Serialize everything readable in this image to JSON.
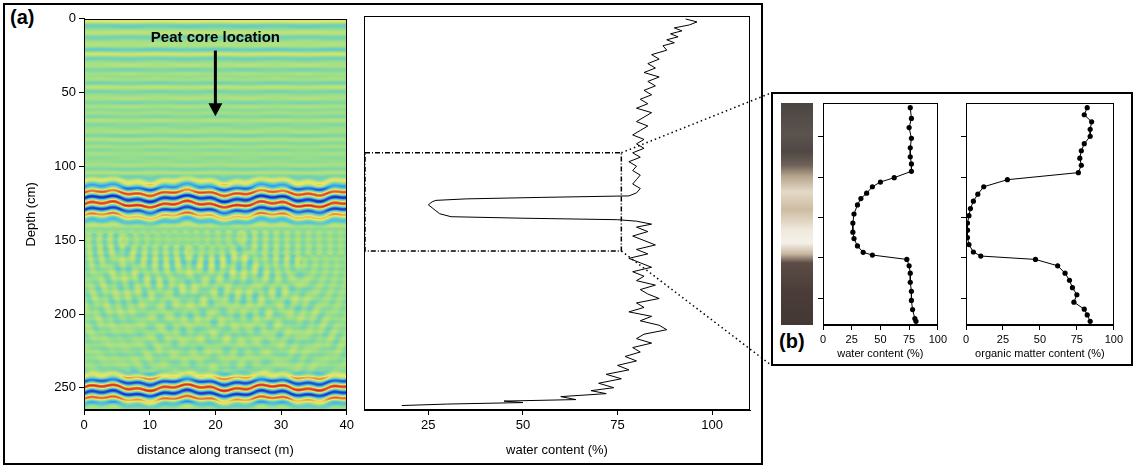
{
  "panel_labels": [
    "(a)",
    "(b)"
  ],
  "chart_data": [
    {
      "type": "radargram",
      "x_label": "distance along transect (m)",
      "y_label": "Depth (cm)",
      "xlim": [
        0,
        40
      ],
      "xticks": [
        0,
        10,
        20,
        30,
        40
      ],
      "ylim": [
        0,
        265
      ],
      "yticks": [
        0,
        50,
        100,
        150,
        200,
        250
      ],
      "reflections": [
        [
          108,
          142
        ],
        [
          240,
          265
        ]
      ],
      "annotations": [
        {
          "text": "Peat core location",
          "x": 20,
          "y": 8,
          "arrow_to": 66
        }
      ],
      "grid": false
    },
    {
      "type": "line",
      "x_label": "water content (%)",
      "color": "#000000",
      "x": [
        93,
        96,
        94,
        90,
        92,
        89,
        91,
        88,
        90,
        87,
        88,
        84,
        86,
        83,
        85,
        82,
        86,
        83,
        85,
        82,
        84,
        81,
        83,
        80,
        84,
        82,
        80,
        83,
        81,
        79,
        82,
        80,
        82,
        79,
        81,
        78,
        80,
        79,
        81,
        80,
        79,
        81,
        80,
        78,
        55,
        35,
        27,
        26,
        25,
        26,
        27,
        28,
        31,
        50,
        75,
        80,
        84,
        80,
        83,
        79,
        82,
        85,
        80,
        83,
        78,
        81,
        84,
        79,
        82,
        80,
        85,
        81,
        83,
        86,
        80,
        82,
        78,
        84,
        81,
        86,
        88,
        82,
        80,
        84,
        79,
        81,
        77,
        80,
        75,
        78,
        72,
        76,
        70,
        74,
        68,
        72,
        60,
        64,
        45,
        50,
        30,
        18
      ],
      "y": [
        2,
        4,
        6,
        8,
        10,
        12,
        14,
        16,
        18,
        20,
        23,
        26,
        29,
        32,
        35,
        38,
        41,
        44,
        47,
        50,
        53,
        56,
        59,
        62,
        65,
        68,
        71,
        74,
        77,
        80,
        83,
        86,
        89,
        92,
        95,
        98,
        101,
        104,
        107,
        110,
        113,
        116,
        119,
        121,
        122,
        123,
        124,
        125,
        127,
        129,
        131,
        133,
        135,
        136,
        137,
        138,
        140,
        142,
        145,
        148,
        151,
        154,
        157,
        160,
        163,
        166,
        169,
        172,
        175,
        178,
        181,
        184,
        187,
        190,
        193,
        196,
        199,
        202,
        205,
        208,
        211,
        214,
        217,
        220,
        223,
        226,
        229,
        232,
        235,
        238,
        241,
        244,
        247,
        250,
        252,
        254,
        256,
        258,
        259,
        260,
        261,
        262
      ],
      "xlim": [
        8,
        110
      ],
      "xticks": [
        25,
        50,
        75,
        100
      ],
      "ylim": [
        0,
        265
      ],
      "tick_labels": "x",
      "zoom_box": {
        "x": [
          8,
          76
        ],
        "y": [
          92,
          158
        ]
      },
      "grid": false
    },
    {
      "type": "line",
      "x_label": "water content (%)",
      "color": "#000000",
      "marker": "circle",
      "x": [
        76,
        77,
        75,
        77,
        76,
        76,
        77,
        77,
        62,
        50,
        43,
        38,
        33,
        30,
        27,
        26,
        26,
        27,
        30,
        35,
        43,
        73,
        75,
        76,
        76,
        77,
        77,
        78,
        80,
        81
      ],
      "y": [
        93.4,
        96.6,
        99.3,
        102.5,
        105.3,
        108.0,
        110.1,
        112.3,
        114.2,
        115.5,
        116.9,
        118.8,
        120.4,
        122.3,
        125.0,
        127.7,
        130.4,
        132.3,
        134.5,
        136.4,
        137.2,
        138.5,
        140.4,
        142.6,
        145.3,
        148.0,
        150.7,
        153.4,
        156.1,
        156.9
      ],
      "xlim": [
        0,
        100
      ],
      "xticks": [
        0,
        25,
        50,
        75,
        100
      ],
      "ylim": [
        92,
        158
      ],
      "yticks": [
        102,
        114,
        126,
        138,
        150
      ],
      "tick_labels": "x",
      "grid": false
    },
    {
      "type": "line",
      "x_label": "organic matter content (%)",
      "color": "#000000",
      "marker": "circle",
      "x": [
        82,
        80,
        85,
        84,
        84,
        80,
        78,
        77,
        78,
        76,
        28,
        12,
        8,
        5,
        3,
        2,
        1,
        1,
        1,
        2,
        5,
        10,
        47,
        62,
        67,
        70,
        72,
        75,
        73,
        80,
        82,
        84
      ],
      "y": [
        93.4,
        95.5,
        97.6,
        99.8,
        101.9,
        104.1,
        106.2,
        108.4,
        110.5,
        112.7,
        114.8,
        116.9,
        119.1,
        121.2,
        123.4,
        125.5,
        127.7,
        129.8,
        132.0,
        134.1,
        136.3,
        137.5,
        138.5,
        140.4,
        142.6,
        144.7,
        146.9,
        149.0,
        151.2,
        153.3,
        155.0,
        156.9
      ],
      "xlim": [
        0,
        100
      ],
      "xticks": [
        0,
        25,
        50,
        75,
        100
      ],
      "ylim": [
        92,
        158
      ],
      "yticks": [
        102,
        114,
        126,
        138,
        150
      ],
      "tick_labels": "x",
      "grid": false
    }
  ]
}
